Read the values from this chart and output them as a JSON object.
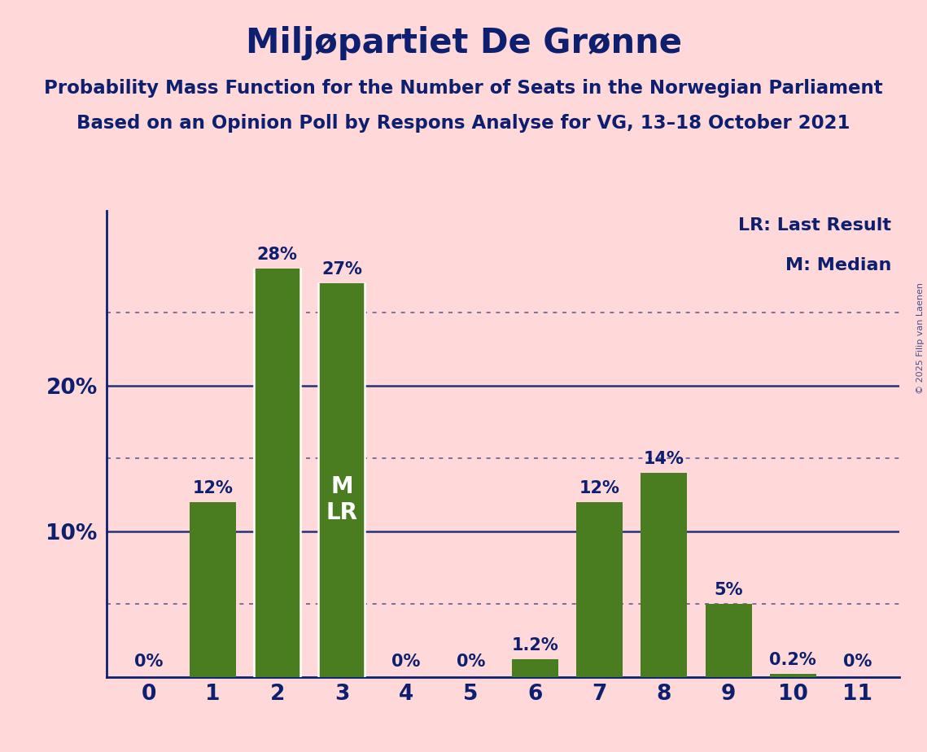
{
  "title": "Miljøpartiet De Grønne",
  "subtitle1": "Probability Mass Function for the Number of Seats in the Norwegian Parliament",
  "subtitle2": "Based on an Opinion Poll by Respons Analyse for VG, 13–18 October 2021",
  "copyright": "© 2025 Filip van Laenen",
  "categories": [
    0,
    1,
    2,
    3,
    4,
    5,
    6,
    7,
    8,
    9,
    10,
    11
  ],
  "values": [
    0.0,
    12.0,
    28.0,
    27.0,
    0.0,
    0.0,
    1.2,
    12.0,
    14.0,
    5.0,
    0.2,
    0.0
  ],
  "bar_color": "#4a7c20",
  "background_color": "#ffd9d9",
  "text_color": "#0d1f6e",
  "title_fontsize": 30,
  "subtitle_fontsize": 16.5,
  "label_fontsize": 15,
  "tick_fontsize": 19,
  "legend_fontsize": 16,
  "copyright_fontsize": 8,
  "dotted_lines": [
    5,
    15,
    25
  ],
  "solid_lines": [
    10,
    20
  ],
  "legend_lr": "LR: Last Result",
  "legend_m": "M: Median",
  "median_bar": 3,
  "lr_bar": 3,
  "bar_label_inside_bars": [
    3
  ],
  "bar_label_inside_text": "M\nLR",
  "bar_label_inside_color": "#ffffff",
  "value_labels": [
    "0%",
    "12%",
    "28%",
    "27%",
    "0%",
    "0%",
    "1.2%",
    "12%",
    "14%",
    "5%",
    "0.2%",
    "0%"
  ],
  "ylim": [
    0,
    32
  ],
  "white_line_bars": [
    2,
    3
  ]
}
